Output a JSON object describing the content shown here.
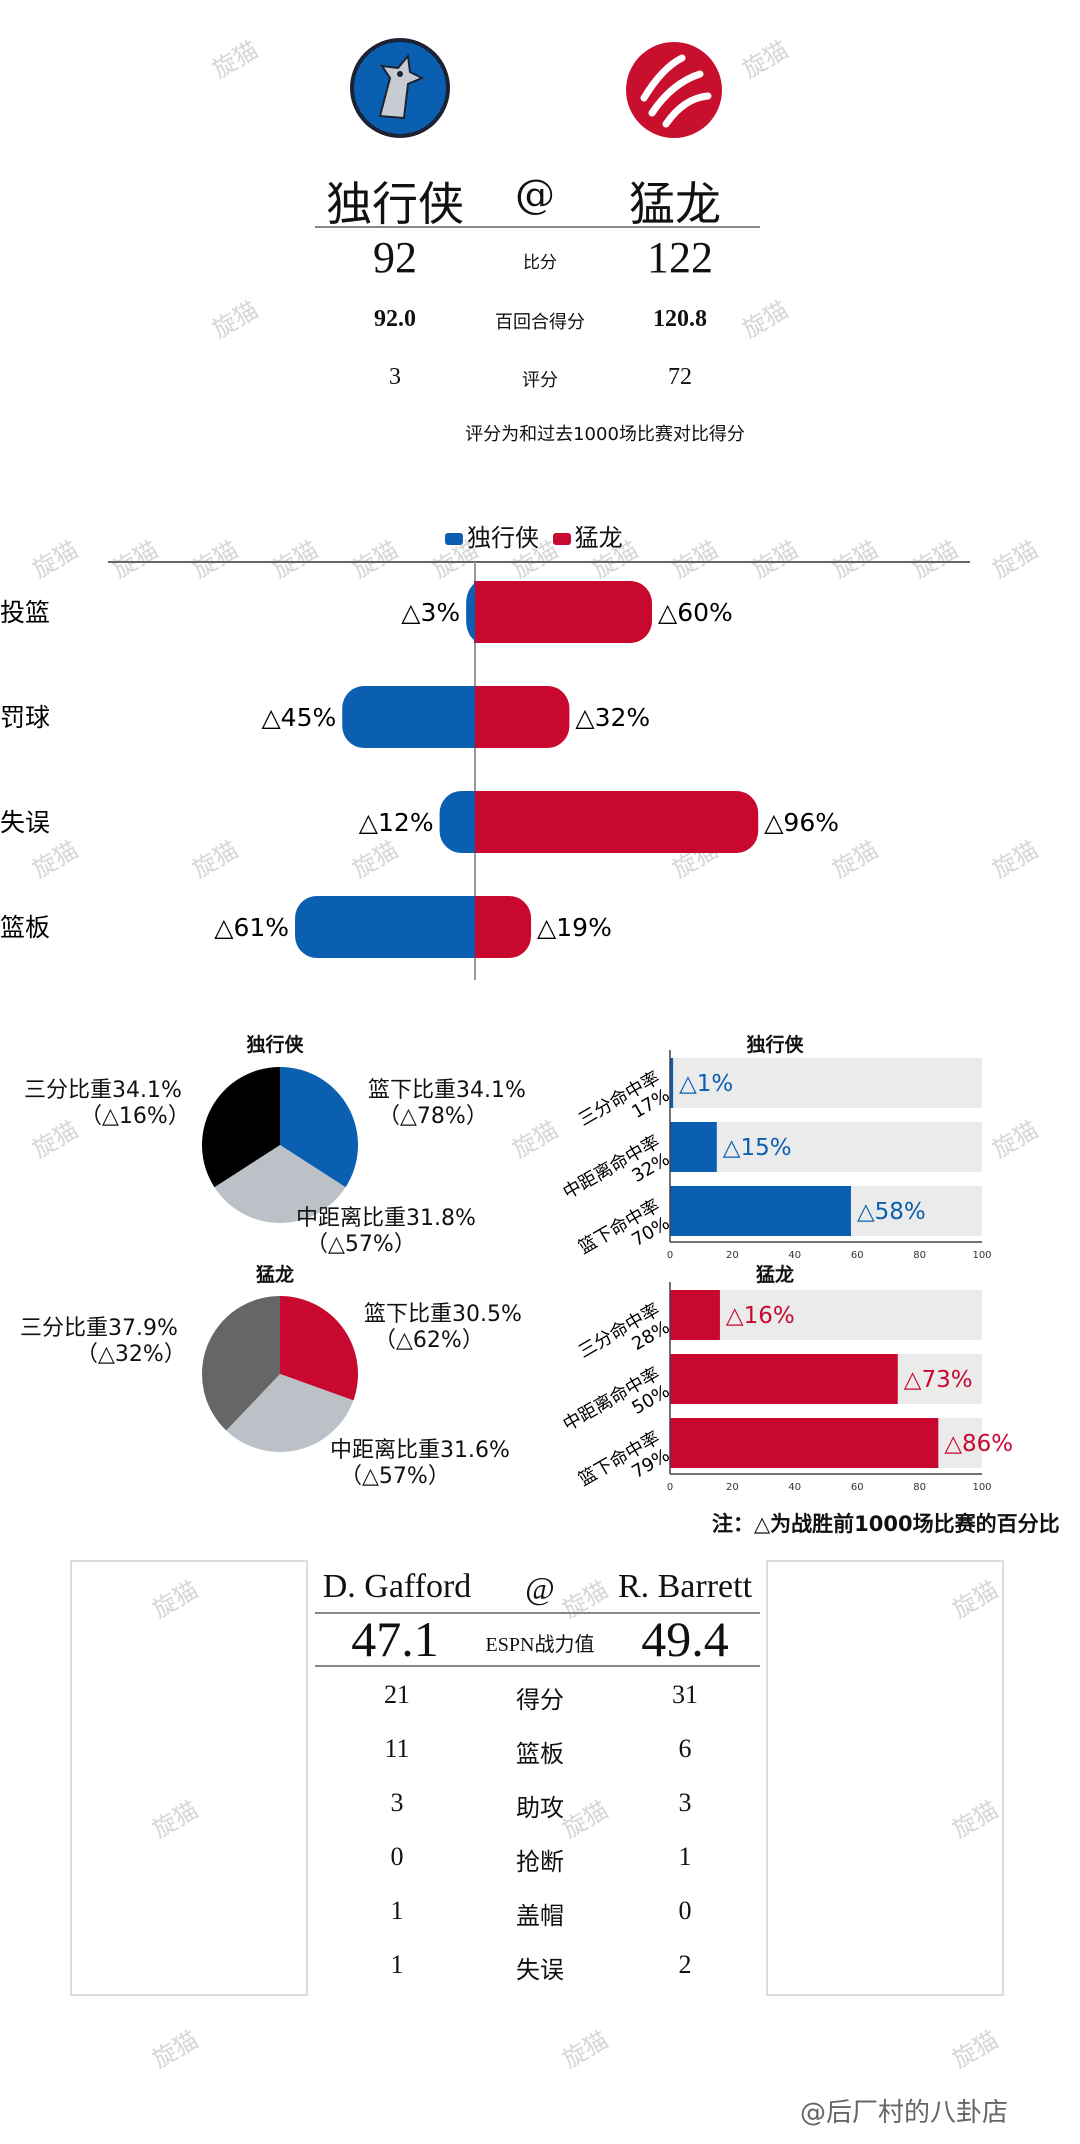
{
  "header": {
    "away_team": "独行侠",
    "home_team": "猛龙",
    "at": "@",
    "rows": [
      {
        "label": "比分",
        "away": "92",
        "home": "122"
      },
      {
        "label": "百回合得分",
        "away": "92.0",
        "home": "120.8"
      },
      {
        "label": "评分",
        "away": "3",
        "home": "72"
      }
    ],
    "note": "评分为和过去1000场比赛对比得分"
  },
  "colors": {
    "away": "#0a5fb0",
    "home": "#c8082f",
    "pie_three_away": "#000000",
    "pie_three_home": "#666666",
    "pie_mid": "#bcc1c7"
  },
  "chart_data": [
    {
      "type": "bar",
      "orientation": "horizontal-diverging",
      "legend": [
        "独行侠",
        "猛龙"
      ],
      "categories": [
        "投篮",
        "罚球",
        "失误",
        "篮板"
      ],
      "series": [
        {
          "name": "独行侠",
          "values": [
            3,
            45,
            12,
            61
          ],
          "labels": [
            "△3%",
            "△45%",
            "△12%",
            "△61%"
          ]
        },
        {
          "name": "猛龙",
          "values": [
            60,
            32,
            96,
            19
          ],
          "labels": [
            "△60%",
            "△32%",
            "△96%",
            "△19%"
          ]
        }
      ]
    },
    {
      "type": "pie",
      "title": "独行侠",
      "slices": [
        {
          "label": "篮下比重34.1%",
          "sub": "（△78%）",
          "value": 34.1
        },
        {
          "label": "中距离比重31.8%",
          "sub": "（△57%）",
          "value": 31.8
        },
        {
          "label": "三分比重34.1%",
          "sub": "（△16%）",
          "value": 34.1
        }
      ]
    },
    {
      "type": "pie",
      "title": "猛龙",
      "slices": [
        {
          "label": "篮下比重30.5%",
          "sub": "（△62%）",
          "value": 30.5
        },
        {
          "label": "中距离比重31.6%",
          "sub": "（△57%）",
          "value": 31.6
        },
        {
          "label": "三分比重37.9%",
          "sub": "（△32%）",
          "value": 37.9
        }
      ]
    },
    {
      "type": "bar",
      "orientation": "horizontal",
      "title": "独行侠",
      "categories": [
        [
          "三分命中率",
          "17%"
        ],
        [
          "中距离命中率",
          "32%"
        ],
        [
          "篮下命中率",
          "70%"
        ]
      ],
      "values": [
        1,
        15,
        58
      ],
      "labels": [
        "△1%",
        "△15%",
        "△58%"
      ],
      "xticks": [
        "0",
        "20",
        "40",
        "60",
        "80",
        "100"
      ],
      "xlim": [
        0,
        100
      ]
    },
    {
      "type": "bar",
      "orientation": "horizontal",
      "title": "猛龙",
      "categories": [
        [
          "三分命中率",
          "28%"
        ],
        [
          "中距离命中率",
          "50%"
        ],
        [
          "篮下命中率",
          "79%"
        ]
      ],
      "values": [
        16,
        73,
        86
      ],
      "labels": [
        "△16%",
        "△73%",
        "△86%"
      ],
      "xticks": [
        "0",
        "20",
        "40",
        "60",
        "80",
        "100"
      ],
      "xlim": [
        0,
        100
      ]
    }
  ],
  "footnote": "注：△为战胜前1000场比赛的百分比",
  "players": {
    "away": "D. Gafford",
    "home": "R. Barrett",
    "at": "@",
    "espn": {
      "label": "ESPN战力值",
      "away": "47.1",
      "home": "49.4"
    },
    "rows": [
      {
        "label": "得分",
        "away": "21",
        "home": "31"
      },
      {
        "label": "篮板",
        "away": "11",
        "home": "6"
      },
      {
        "label": "助攻",
        "away": "3",
        "home": "3"
      },
      {
        "label": "抢断",
        "away": "0",
        "home": "1"
      },
      {
        "label": "盖帽",
        "away": "1",
        "home": "0"
      },
      {
        "label": "失误",
        "away": "1",
        "home": "2"
      }
    ]
  },
  "watermark": "旋猫",
  "credit": "@后厂村的八卦店"
}
